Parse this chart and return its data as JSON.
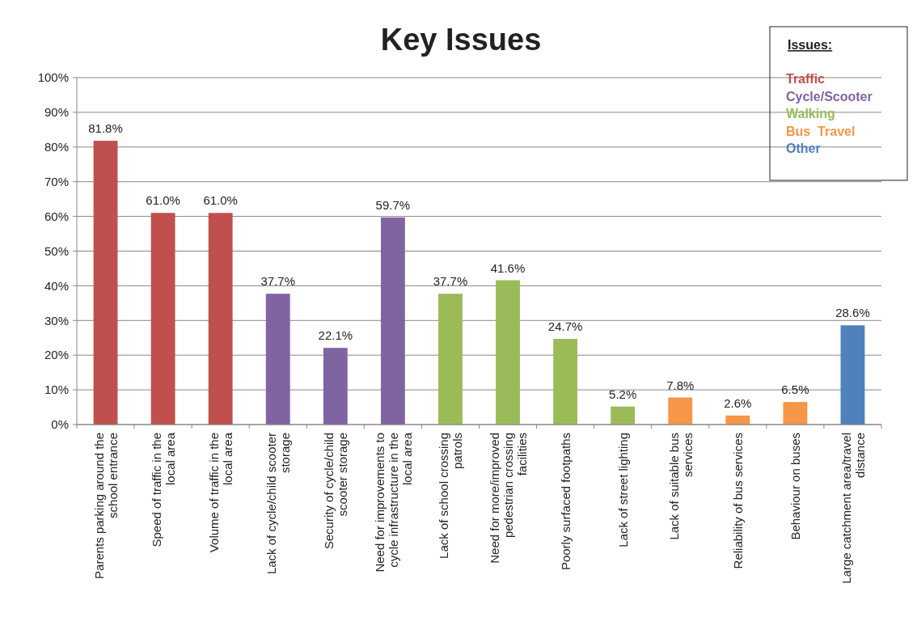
{
  "chart_data": {
    "type": "bar",
    "title": "Key Issues",
    "legend_title": "Issues:",
    "legend": "top right",
    "stacked": true,
    "grid": "y",
    "categories": [
      "Parents parking around the school entrance",
      "Speed of traffic in the local area",
      "Volume of traffic in the local area",
      "Lack of cycle/child scooter storage",
      "Security of cycle/child scooter storage",
      "Need for improvements to cycle infrastructure in the local area",
      "Lack of school crossing patrols",
      "Need for more/improved pedestrian crossing facilities",
      "Poorly surfaced footpaths",
      "Lack of street lighting",
      "Lack of suitable bus services",
      "Reliability of bus services",
      "Behaviour on buses",
      "Large catchment area/travel distance"
    ],
    "ylim": [
      0,
      100
    ],
    "yticks": [
      {
        "value": 0,
        "label": "0%"
      },
      {
        "value": 10,
        "label": "10%"
      },
      {
        "value": 20,
        "label": "20%"
      },
      {
        "value": 30,
        "label": "30%"
      },
      {
        "value": 40,
        "label": "40%"
      },
      {
        "value": 50,
        "label": "50%"
      },
      {
        "value": 60,
        "label": "60%"
      },
      {
        "value": 70,
        "label": "70%"
      },
      {
        "value": 80,
        "label": "80%"
      },
      {
        "value": 90,
        "label": "90%"
      },
      {
        "value": 100,
        "label": "100%"
      }
    ],
    "series": [
      {
        "name": "Traffic",
        "color": "#c0504d",
        "values": [
          81.8,
          61.0,
          61.0,
          null,
          null,
          null,
          null,
          null,
          null,
          null,
          null,
          null,
          null,
          null
        ],
        "value_labels": [
          "81.8%",
          "61.0%",
          "61.0%",
          null,
          null,
          null,
          null,
          null,
          null,
          null,
          null,
          null,
          null,
          null
        ]
      },
      {
        "name": "Cycle/Scooter",
        "color": "#8064a2",
        "values": [
          null,
          null,
          null,
          37.7,
          22.1,
          59.7,
          null,
          null,
          null,
          null,
          null,
          null,
          null,
          null
        ],
        "value_labels": [
          null,
          null,
          null,
          "37.7%",
          "22.1%",
          "59.7%",
          null,
          null,
          null,
          null,
          null,
          null,
          null,
          null
        ]
      },
      {
        "name": "Walking",
        "color": "#9bbb59",
        "values": [
          null,
          null,
          null,
          null,
          null,
          null,
          37.7,
          41.6,
          24.7,
          5.2,
          null,
          null,
          null,
          null
        ],
        "value_labels": [
          null,
          null,
          null,
          null,
          null,
          null,
          "37.7%",
          "41.6%",
          "24.7%",
          "5.2%",
          null,
          null,
          null,
          null
        ]
      },
      {
        "name": "Bus  Travel",
        "color": "#f79646",
        "values": [
          null,
          null,
          null,
          null,
          null,
          null,
          null,
          null,
          null,
          null,
          7.8,
          2.6,
          6.5,
          null
        ],
        "value_labels": [
          null,
          null,
          null,
          null,
          null,
          null,
          null,
          null,
          null,
          null,
          "7.8%",
          "2.6%",
          "6.5%",
          null
        ]
      },
      {
        "name": "Other",
        "color": "#4f81bd",
        "values": [
          null,
          null,
          null,
          null,
          null,
          null,
          null,
          null,
          null,
          null,
          null,
          null,
          null,
          28.6
        ],
        "value_labels": [
          null,
          null,
          null,
          null,
          null,
          null,
          null,
          null,
          null,
          null,
          null,
          null,
          null,
          "28.6%"
        ]
      }
    ]
  }
}
